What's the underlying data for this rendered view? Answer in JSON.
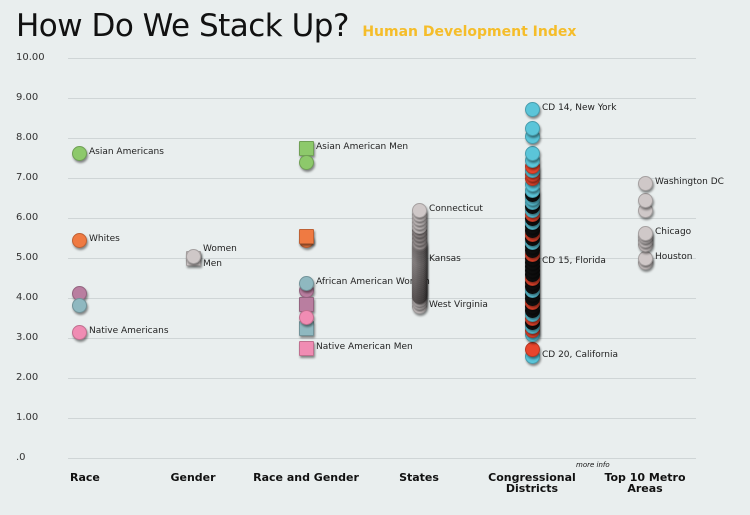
{
  "header": {
    "title": "How Do We Stack Up?",
    "subtitle": "Human Development Index",
    "more_info": "more info"
  },
  "chart_data": {
    "type": "scatter",
    "title": "How Do We Stack Up?",
    "subtitle": "Human Development Index",
    "ylim": [
      0,
      10
    ],
    "yticks": [
      "10.00",
      "9.00",
      "8.00",
      "7.00",
      "6.00",
      "5.00",
      "4.00",
      "3.00",
      "2.00",
      "1.00",
      ".0"
    ],
    "categories": [
      "Race",
      "Gender",
      "Race and Gender",
      "States",
      "Congressional Districts",
      "Top 10 Metro Areas"
    ],
    "colors": {
      "asian": "#8dc96b",
      "white": "#ef7a42",
      "black": "#b97ea0",
      "latino": "#8fb8c0",
      "native": "#f08cb3",
      "neutral": "#cfc8c8",
      "cd_blue": "#5bc5d9",
      "cd_red": "#e8452c",
      "cd_dark": "#111111"
    },
    "series": [
      {
        "category": 0,
        "points": [
          {
            "v": 7.63,
            "c": "asian",
            "label": "Asian Americans"
          },
          {
            "v": 5.45,
            "c": "white",
            "label": "Whites"
          },
          {
            "v": 4.12,
            "c": "black"
          },
          {
            "v": 3.83,
            "c": "latino"
          },
          {
            "v": 3.15,
            "c": "native",
            "label": "Native Americans"
          }
        ]
      },
      {
        "category": 1,
        "points": [
          {
            "v": 5.0,
            "c": "neutral",
            "shape": "square",
            "label": "Men"
          },
          {
            "v": 5.05,
            "c": "neutral",
            "label": "Women"
          }
        ]
      },
      {
        "category": 2,
        "points": [
          {
            "v": 7.75,
            "c": "asian",
            "shape": "square",
            "label": "Asian American Men"
          },
          {
            "v": 7.4,
            "c": "asian"
          },
          {
            "v": 5.45,
            "c": "white"
          },
          {
            "v": 5.55,
            "c": "white",
            "shape": "square"
          },
          {
            "v": 4.2,
            "c": "black"
          },
          {
            "v": 4.37,
            "c": "latino",
            "label": "African American Women"
          },
          {
            "v": 3.85,
            "c": "black",
            "shape": "square"
          },
          {
            "v": 3.25,
            "c": "latino",
            "shape": "square"
          },
          {
            "v": 3.52,
            "c": "native"
          },
          {
            "v": 2.75,
            "c": "native",
            "shape": "square",
            "label": "Native American Men"
          }
        ]
      },
      {
        "category": 3,
        "points": [
          {
            "v": 3.8,
            "c": "neutral",
            "label": "West Virginia"
          },
          {
            "v": 3.9
          },
          {
            "v": 3.98
          },
          {
            "v": 4.05
          },
          {
            "v": 4.1
          },
          {
            "v": 4.15
          },
          {
            "v": 4.2
          },
          {
            "v": 4.25
          },
          {
            "v": 4.3
          },
          {
            "v": 4.35
          },
          {
            "v": 4.4
          },
          {
            "v": 4.45
          },
          {
            "v": 4.5
          },
          {
            "v": 4.55
          },
          {
            "v": 4.6
          },
          {
            "v": 4.65
          },
          {
            "v": 4.7
          },
          {
            "v": 4.75
          },
          {
            "v": 4.8
          },
          {
            "v": 4.85
          },
          {
            "v": 4.9
          },
          {
            "v": 4.95,
            "label": "Kansas"
          },
          {
            "v": 5.0
          },
          {
            "v": 5.05
          },
          {
            "v": 5.1
          },
          {
            "v": 5.15
          },
          {
            "v": 5.2
          },
          {
            "v": 5.25
          },
          {
            "v": 5.3
          },
          {
            "v": 5.35
          },
          {
            "v": 5.4
          },
          {
            "v": 5.5
          },
          {
            "v": 5.6
          },
          {
            "v": 5.7
          },
          {
            "v": 5.8
          },
          {
            "v": 5.9
          },
          {
            "v": 6.0
          },
          {
            "v": 6.1
          },
          {
            "v": 6.2,
            "label": "Connecticut"
          }
        ]
      },
      {
        "category": 4,
        "points": [
          {
            "v": 2.55,
            "c": "cd_blue",
            "label": "CD 20, California"
          },
          {
            "v": 2.72,
            "c": "cd_red"
          },
          {
            "v": 3.1,
            "c": "cd_blue"
          },
          {
            "v": 3.2,
            "c": "cd_red"
          },
          {
            "v": 3.3,
            "c": "cd_blue"
          },
          {
            "v": 3.4,
            "c": "cd_dark"
          },
          {
            "v": 3.5,
            "c": "cd_red"
          },
          {
            "v": 3.6,
            "c": "cd_blue"
          },
          {
            "v": 3.7,
            "c": "cd_dark"
          },
          {
            "v": 3.8,
            "c": "cd_dark"
          },
          {
            "v": 3.9,
            "c": "cd_red"
          },
          {
            "v": 4.0,
            "c": "cd_dark"
          },
          {
            "v": 4.1,
            "c": "cd_dark"
          },
          {
            "v": 4.2,
            "c": "cd_blue"
          },
          {
            "v": 4.3,
            "c": "cd_dark"
          },
          {
            "v": 4.4,
            "c": "cd_dark"
          },
          {
            "v": 4.5,
            "c": "cd_red"
          },
          {
            "v": 4.6,
            "c": "cd_dark"
          },
          {
            "v": 4.7,
            "c": "cd_dark"
          },
          {
            "v": 4.8,
            "c": "cd_dark"
          },
          {
            "v": 4.9,
            "c": "cd_dark",
            "label": "CD 15, Florida"
          },
          {
            "v": 5.0,
            "c": "cd_dark"
          },
          {
            "v": 5.1,
            "c": "cd_red"
          },
          {
            "v": 5.2,
            "c": "cd_dark"
          },
          {
            "v": 5.3,
            "c": "cd_dark"
          },
          {
            "v": 5.4,
            "c": "cd_blue"
          },
          {
            "v": 5.5,
            "c": "cd_dark"
          },
          {
            "v": 5.6,
            "c": "cd_red"
          },
          {
            "v": 5.7,
            "c": "cd_dark"
          },
          {
            "v": 5.8,
            "c": "cd_dark"
          },
          {
            "v": 5.9,
            "c": "cd_blue"
          },
          {
            "v": 6.0,
            "c": "cd_dark"
          },
          {
            "v": 6.1,
            "c": "cd_red"
          },
          {
            "v": 6.2,
            "c": "cd_blue"
          },
          {
            "v": 6.3,
            "c": "cd_dark"
          },
          {
            "v": 6.4,
            "c": "cd_blue"
          },
          {
            "v": 6.5,
            "c": "cd_blue"
          },
          {
            "v": 6.6,
            "c": "cd_dark"
          },
          {
            "v": 6.7,
            "c": "cd_blue"
          },
          {
            "v": 6.85,
            "c": "cd_blue"
          },
          {
            "v": 7.0,
            "c": "cd_red"
          },
          {
            "v": 7.1,
            "c": "cd_red"
          },
          {
            "v": 7.2,
            "c": "cd_blue"
          },
          {
            "v": 7.3,
            "c": "cd_red"
          },
          {
            "v": 7.45,
            "c": "cd_blue"
          },
          {
            "v": 7.62,
            "c": "cd_blue"
          },
          {
            "v": 8.05,
            "c": "cd_blue"
          },
          {
            "v": 8.25,
            "c": "cd_blue"
          },
          {
            "v": 8.72,
            "c": "cd_blue",
            "label": "CD 14, New York"
          }
        ]
      },
      {
        "category": 5,
        "points": [
          {
            "v": 4.9,
            "c": "neutral"
          },
          {
            "v": 5.0,
            "c": "neutral",
            "label": "Houston"
          },
          {
            "v": 5.35,
            "c": "neutral"
          },
          {
            "v": 5.45,
            "c": "neutral"
          },
          {
            "v": 5.55,
            "c": "neutral"
          },
          {
            "v": 5.62,
            "c": "neutral",
            "label": "Chicago"
          },
          {
            "v": 6.2,
            "c": "neutral"
          },
          {
            "v": 6.45,
            "c": "neutral"
          },
          {
            "v": 6.87,
            "c": "neutral",
            "label": "Washington DC"
          }
        ]
      }
    ]
  }
}
